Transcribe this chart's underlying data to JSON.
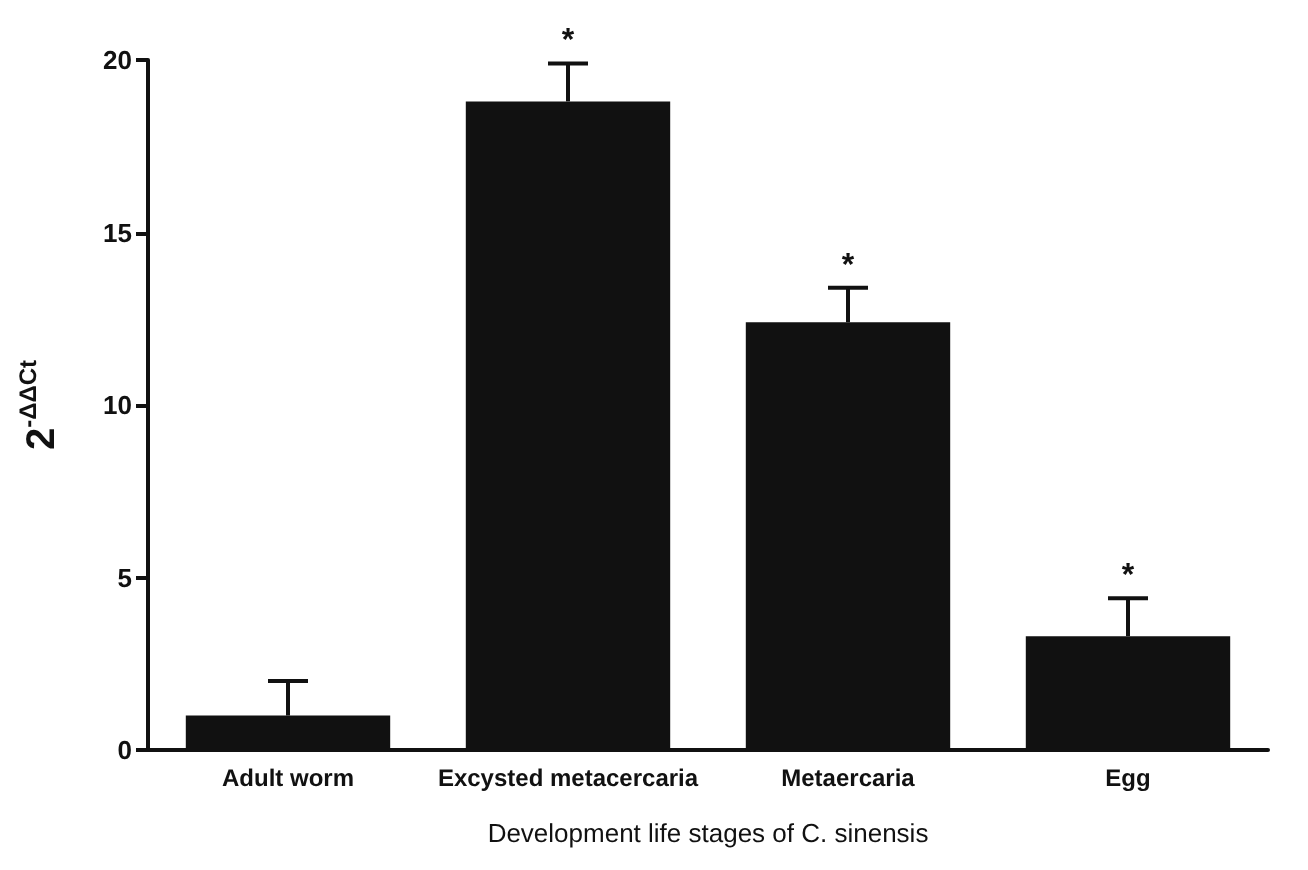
{
  "chart_data": {
    "type": "bar",
    "xlabel": "Development life stages of C. sinensis",
    "ylabel": "2$^{-ΔΔCt}$",
    "categories": [
      "Adult worm",
      "Excysted metacercaria",
      "Metaercaria",
      "Egg"
    ],
    "values": [
      1,
      18.8,
      12.4,
      3.3
    ],
    "errors": [
      [
        1,
        2
      ],
      [
        18.8,
        19.9
      ],
      [
        12.4,
        13.4
      ],
      [
        3.3,
        4.4
      ]
    ],
    "color": "#111111",
    "ylim": [
      0,
      20
    ],
    "yticks": [
      0,
      5,
      10,
      15,
      20
    ],
    "grid": false,
    "annotations": [
      {
        "text": "*",
        "x": "Excysted metacercaria",
        "y": 19.9
      },
      {
        "text": "*",
        "x": "Metaercaria",
        "y": 13.4
      },
      {
        "text": "*",
        "x": "Egg",
        "y": 4.4
      }
    ]
  }
}
